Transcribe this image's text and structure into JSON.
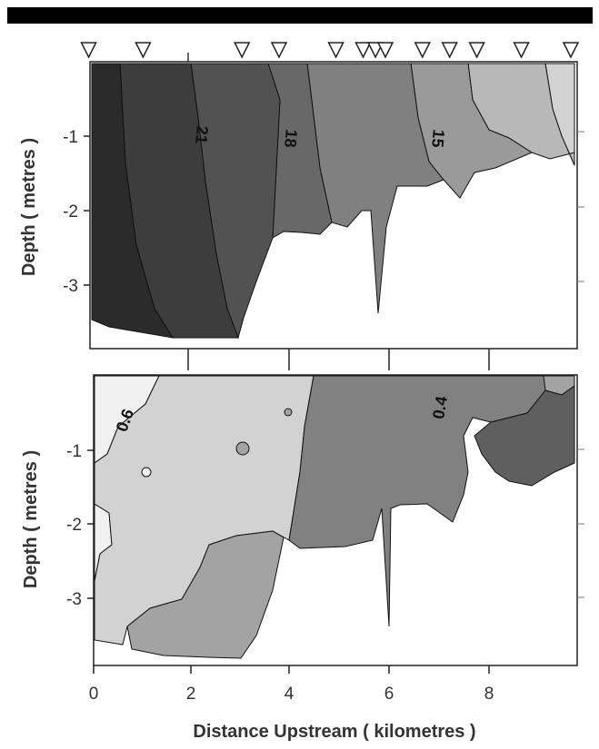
{
  "chart_data": [
    {
      "type": "contour",
      "panel": "top",
      "ylabel": "Depth ( metres )",
      "x_ticks": [],
      "y_ticks": [
        "-1",
        "-2",
        "-3"
      ],
      "ylim": [
        -3.7,
        0
      ],
      "xlim": [
        0,
        9.7
      ],
      "station_markers_x": [
        -0.1,
        1.0,
        3.0,
        3.75,
        4.9,
        5.45,
        5.7,
        5.9,
        6.65,
        7.2,
        7.75,
        8.65,
        9.65
      ],
      "contour_labels": [
        {
          "text": "21",
          "x": 2.3,
          "y": -1.0
        },
        {
          "text": "18",
          "x": 4.1,
          "y": -1.05
        },
        {
          "text": "15",
          "x": 6.75,
          "y": -1.05
        }
      ],
      "fill_colors": [
        "#2b2b2b",
        "#3d3d3d",
        "#525252",
        "#686868",
        "#808080",
        "#9a9a9a",
        "#b8b8b8",
        "#d2d2d2"
      ]
    },
    {
      "type": "contour",
      "panel": "bottom",
      "xlabel": "Distance Upstream ( kilometres )",
      "ylabel": "Depth ( metres )",
      "x_ticks": [
        "0",
        "2",
        "4",
        "6",
        "8"
      ],
      "y_ticks": [
        "-1",
        "-2",
        "-3"
      ],
      "xlim": [
        0,
        9.7
      ],
      "ylim": [
        -3.9,
        0
      ],
      "contour_labels": [
        {
          "text": "0.6",
          "x": 0.45,
          "y": -0.65
        },
        {
          "text": "0.4",
          "x": 6.9,
          "y": -0.5
        }
      ],
      "fill_colors": [
        "#f1f1f1",
        "#d2d2d2",
        "#a3a3a3",
        "#818181",
        "#5f5f5f"
      ]
    }
  ],
  "header_bar_color": "#000000"
}
